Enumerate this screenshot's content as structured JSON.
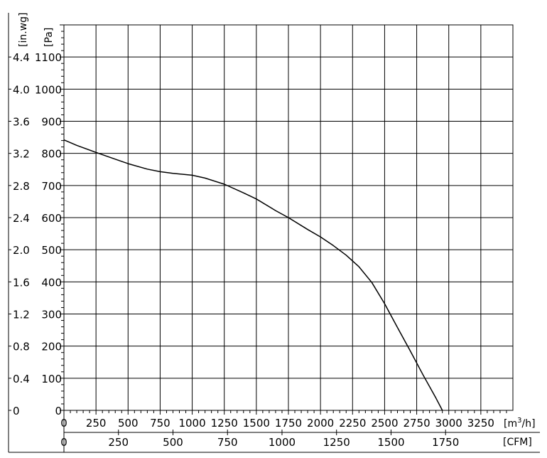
{
  "chart_data": {
    "type": "line",
    "series": [
      {
        "x_m3h": [
          0,
          100,
          250,
          400,
          500,
          650,
          750,
          850,
          1000,
          1100,
          1250,
          1400,
          1500,
          1650,
          1750,
          1900,
          2000,
          2100,
          2200,
          2300,
          2400,
          2500,
          2600,
          2700,
          2800,
          2900,
          2950
        ],
        "y_pa": [
          842,
          825,
          803,
          782,
          768,
          751,
          743,
          738,
          732,
          723,
          704,
          677,
          658,
          622,
          600,
          563,
          540,
          513,
          483,
          447,
          398,
          332,
          258,
          185,
          110,
          38,
          0
        ]
      }
    ],
    "x_axis_primary": {
      "unit": "[m3/h]",
      "unit_base": "[m",
      "unit_sup": "3",
      "unit_tail": "/h]",
      "range": [
        0,
        3500
      ],
      "ticks": [
        0,
        250,
        500,
        750,
        1000,
        1250,
        1500,
        1750,
        2000,
        2250,
        2500,
        2750,
        3000,
        3250
      ],
      "tick_labels": [
        "0",
        "250",
        "500",
        "750",
        "1000",
        "1250",
        "1500",
        "1750",
        "2000",
        "2250",
        "2500",
        "2750",
        "3000",
        "3250"
      ]
    },
    "x_axis_secondary": {
      "unit": "[CFM]",
      "ticks": [
        0,
        250,
        500,
        750,
        1000,
        1250,
        1500,
        1750
      ],
      "tick_labels": [
        "0",
        "250",
        "500",
        "750",
        "1000",
        "1250",
        "1500",
        "1750"
      ]
    },
    "y_axis_primary": {
      "unit": "[Pa]",
      "range": [
        0,
        1200
      ],
      "ticks": [
        0,
        100,
        200,
        300,
        400,
        500,
        600,
        700,
        800,
        900,
        1000,
        1100
      ],
      "tick_labels": [
        "0",
        "100",
        "200",
        "300",
        "400",
        "500",
        "600",
        "700",
        "800",
        "900",
        "1000",
        "1100"
      ]
    },
    "y_axis_secondary": {
      "unit": "[in.wg]",
      "ticks": [
        0,
        0.4,
        0.8,
        1.2,
        1.6,
        2.0,
        2.4,
        2.8,
        3.2,
        3.6,
        4.0,
        4.4
      ],
      "tick_labels": [
        "0",
        "0.4",
        "0.8",
        "1.2",
        "1.6",
        "2.0",
        "2.4",
        "2.8",
        "3.2",
        "3.6",
        "4.0",
        "4.4"
      ]
    },
    "grid": true,
    "title": "",
    "legend": "none"
  }
}
